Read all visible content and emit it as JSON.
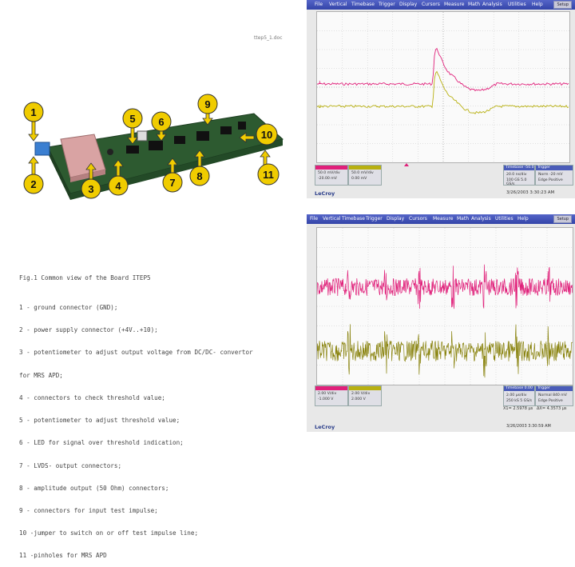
{
  "document": {
    "filename": "ttep5_1.doc",
    "caption_title": "Fig.1 Common view of the Board ITEP5",
    "caption_lines": [
      "1 - ground connector (GND);",
      "2 - power supply connector (+4V..+10);",
      "3 - potentiometer to adjust output voltage from DC/DC- convertor",
      "for MRS APD;",
      "4 - connectors to check threshold value;",
      "5 - potentiometer to adjust threshold value;",
      "6 - LED for signal over threshold indication;",
      "7 - LVDS- output connectors;",
      "8 - amplitude output (50 Ohm) connectors;",
      "9 - connectors for input test impulse;",
      "10 -jumper to switch on or off test impulse line;",
      "11 -pinholes for MRS APD"
    ],
    "callouts": [
      "1",
      "2",
      "3",
      "4",
      "5",
      "6",
      "7",
      "8",
      "9",
      "10",
      "11"
    ]
  },
  "scope_common": {
    "menu": [
      "File",
      "Vertical",
      "Timebase",
      "Trigger",
      "Display",
      "Cursors",
      "Measure",
      "Math",
      "Analysis",
      "Utilities",
      "Help"
    ],
    "brand": "LeCroy",
    "colors": {
      "trace1": "#e0207a",
      "trace2": "#b8b010",
      "accent": "#3344a8"
    }
  },
  "scope1": {
    "mode": "Setup",
    "ch1": {
      "label": "C1",
      "line1": "50.0 mV/div",
      "line2": "-20.00 mV"
    },
    "ch2": {
      "label": "C2",
      "line1": "50.0 mV/div",
      "line2": "0.00 mV"
    },
    "timebase": {
      "header": "Timebase -50.0 ns",
      "line1": "20.0 ns/div",
      "line2": "100 GS 5.0 GS/s"
    },
    "trigger": {
      "header": "Trigger",
      "line1": "Norm -20 mV",
      "line2": "Edge Positive"
    },
    "timestamp": "3/26/2003  3:30:23 AM"
  },
  "scope2": {
    "mode": "Setup",
    "ch1": {
      "label": "C1",
      "line1": "2.00 V/div",
      "line2": "-1.000 V"
    },
    "ch2": {
      "label": "C2",
      "line1": "2.00 V/div",
      "line2": "2.000 V"
    },
    "timebase": {
      "header": "Timebase 0.00 ns",
      "line1": "2.00 µs/div",
      "line2": "250 kS 5 GS/s"
    },
    "trigger": {
      "header": "Trigger",
      "line1": "Normal 840 mV",
      "line2": "Edge Positive"
    },
    "cursor_x1": "X1= 2.5978 µs",
    "cursor_dx": "ΔX= 4.3573 µs",
    "timestamp": "3/26/2003  3:30:59 AM"
  }
}
